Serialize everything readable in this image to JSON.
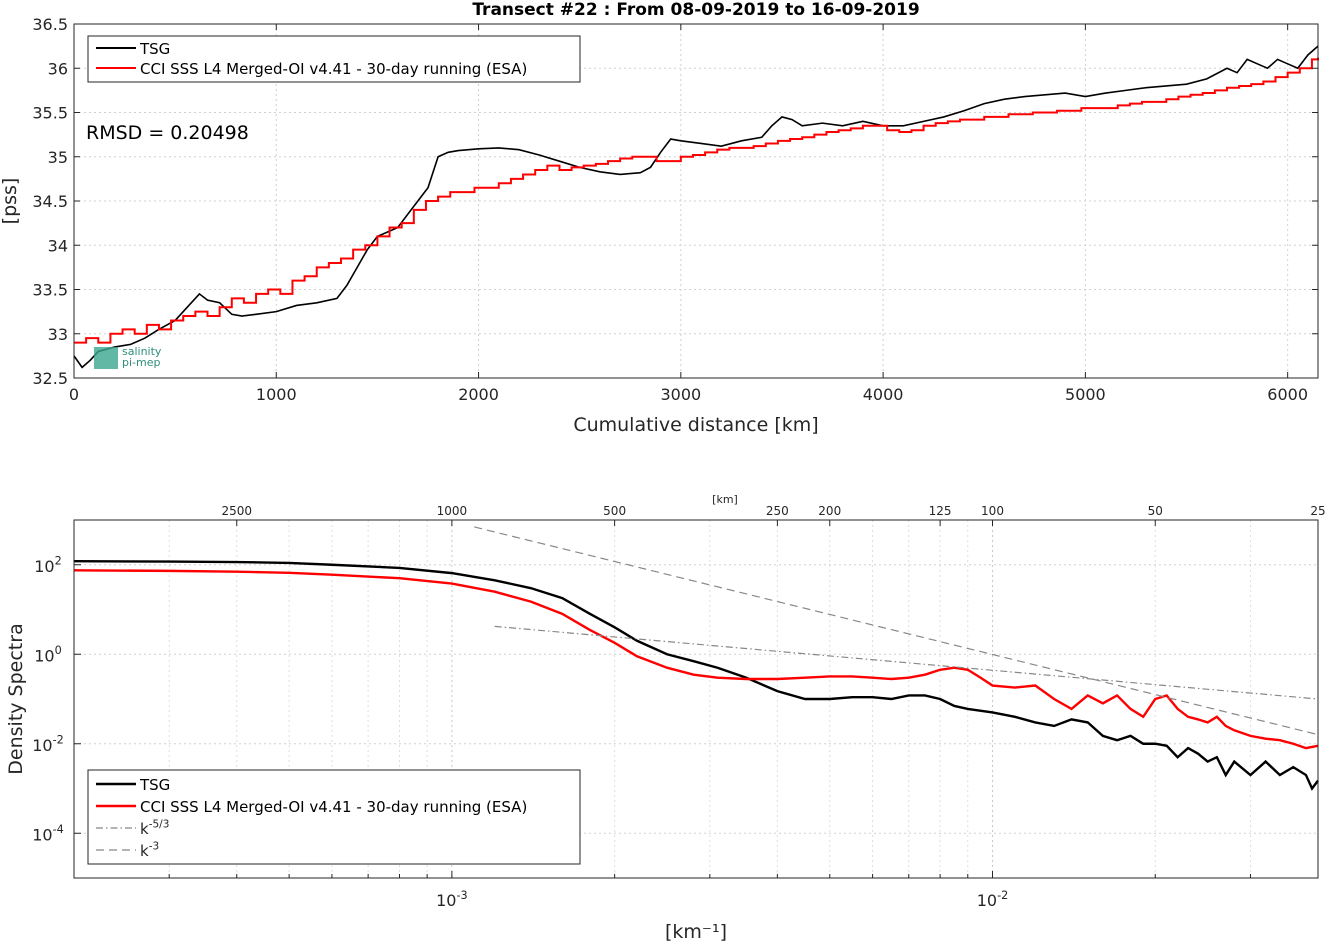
{
  "chart_data": [
    {
      "type": "line",
      "title": "Transect #22 : From 08-09-2019 to 16-09-2019",
      "xlabel": "Cumulative distance [km]",
      "ylabel": "[pss]",
      "xlim": [
        0,
        6150
      ],
      "ylim": [
        32.5,
        36.5
      ],
      "xticks": [
        0,
        1000,
        2000,
        3000,
        4000,
        5000,
        6000
      ],
      "yticks": [
        32.5,
        33,
        33.5,
        34,
        34.5,
        35,
        35.5,
        36,
        36.5
      ],
      "xtick_labels": [
        "0",
        "1000",
        "2000",
        "3000",
        "4000",
        "5000",
        "6000"
      ],
      "ytick_labels": [
        "32.5",
        "33",
        "33.5",
        "34",
        "34.5",
        "35",
        "35.5",
        "36",
        "36.5"
      ],
      "grid": true,
      "legend_position": "top-left",
      "annotation": "RMSD = 0.20498",
      "watermark_text": [
        "salinity",
        "pi-mep"
      ],
      "series": [
        {
          "name": "TSG",
          "color": "#000000",
          "x": [
            0,
            40,
            80,
            120,
            200,
            280,
            350,
            420,
            500,
            560,
            620,
            660,
            720,
            780,
            830,
            900,
            1000,
            1100,
            1200,
            1300,
            1350,
            1400,
            1450,
            1500,
            1550,
            1600,
            1650,
            1700,
            1750,
            1800,
            1850,
            1900,
            2000,
            2100,
            2200,
            2300,
            2400,
            2500,
            2600,
            2700,
            2800,
            2850,
            2900,
            2950,
            3000,
            3100,
            3200,
            3300,
            3400,
            3450,
            3500,
            3550,
            3600,
            3700,
            3800,
            3900,
            4000,
            4100,
            4200,
            4300,
            4400,
            4500,
            4600,
            4700,
            4800,
            4900,
            5000,
            5100,
            5200,
            5300,
            5400,
            5500,
            5600,
            5700,
            5750,
            5800,
            5850,
            5900,
            5950,
            6000,
            6050,
            6100,
            6150
          ],
          "y": [
            32.75,
            32.62,
            32.7,
            32.8,
            32.85,
            32.88,
            32.95,
            33.05,
            33.15,
            33.3,
            33.45,
            33.38,
            33.35,
            33.22,
            33.2,
            33.22,
            33.25,
            33.32,
            33.35,
            33.4,
            33.55,
            33.75,
            33.95,
            34.1,
            34.15,
            34.2,
            34.35,
            34.5,
            34.65,
            35.0,
            35.05,
            35.07,
            35.09,
            35.1,
            35.08,
            35.02,
            34.95,
            34.88,
            34.83,
            34.8,
            34.82,
            34.88,
            35.05,
            35.2,
            35.18,
            35.15,
            35.12,
            35.18,
            35.22,
            35.35,
            35.45,
            35.42,
            35.35,
            35.38,
            35.35,
            35.4,
            35.35,
            35.35,
            35.4,
            35.45,
            35.52,
            35.6,
            35.65,
            35.68,
            35.7,
            35.72,
            35.68,
            35.72,
            35.75,
            35.78,
            35.8,
            35.82,
            35.88,
            36.0,
            35.95,
            36.1,
            36.05,
            36.0,
            36.1,
            36.05,
            36.0,
            36.15,
            36.25
          ]
        },
        {
          "name": "CCI SSS L4 Merged-OI v4.41 - 30-day running (ESA)",
          "color": "#ff0000",
          "step": true,
          "x": [
            0,
            60,
            120,
            180,
            240,
            300,
            360,
            420,
            480,
            540,
            600,
            660,
            720,
            780,
            840,
            900,
            960,
            1020,
            1080,
            1140,
            1200,
            1260,
            1320,
            1380,
            1440,
            1500,
            1560,
            1620,
            1680,
            1740,
            1800,
            1860,
            1920,
            1980,
            2040,
            2100,
            2160,
            2220,
            2280,
            2340,
            2400,
            2460,
            2520,
            2580,
            2640,
            2700,
            2760,
            2820,
            2880,
            2940,
            3000,
            3060,
            3120,
            3180,
            3240,
            3300,
            3360,
            3420,
            3480,
            3540,
            3600,
            3660,
            3720,
            3780,
            3840,
            3900,
            3960,
            4020,
            4080,
            4140,
            4200,
            4260,
            4320,
            4380,
            4440,
            4500,
            4560,
            4620,
            4680,
            4740,
            4800,
            4860,
            4920,
            4980,
            5040,
            5100,
            5160,
            5220,
            5280,
            5340,
            5400,
            5460,
            5520,
            5580,
            5640,
            5700,
            5760,
            5820,
            5880,
            5940,
            6000,
            6060,
            6120,
            6150
          ],
          "y": [
            32.9,
            32.95,
            32.9,
            33.0,
            33.05,
            33.0,
            33.1,
            33.05,
            33.15,
            33.2,
            33.25,
            33.2,
            33.3,
            33.4,
            33.35,
            33.45,
            33.5,
            33.45,
            33.6,
            33.65,
            33.75,
            33.8,
            33.85,
            33.95,
            34.0,
            34.1,
            34.2,
            34.25,
            34.4,
            34.5,
            34.55,
            34.6,
            34.6,
            34.65,
            34.65,
            34.7,
            34.75,
            34.8,
            34.85,
            34.9,
            34.85,
            34.88,
            34.9,
            34.92,
            34.95,
            34.98,
            35.0,
            35.0,
            34.95,
            34.95,
            35.0,
            35.02,
            35.05,
            35.08,
            35.1,
            35.1,
            35.12,
            35.15,
            35.18,
            35.2,
            35.22,
            35.25,
            35.28,
            35.3,
            35.32,
            35.35,
            35.35,
            35.3,
            35.28,
            35.3,
            35.35,
            35.38,
            35.4,
            35.42,
            35.42,
            35.45,
            35.45,
            35.48,
            35.48,
            35.5,
            35.5,
            35.52,
            35.52,
            35.55,
            35.55,
            35.55,
            35.58,
            35.6,
            35.62,
            35.62,
            35.65,
            35.68,
            35.7,
            35.72,
            35.75,
            35.78,
            35.8,
            35.82,
            35.85,
            35.9,
            35.95,
            36.0,
            36.1,
            36.12
          ]
        }
      ]
    },
    {
      "type": "line",
      "title": "",
      "xlabel": "[km⁻¹]",
      "ylabel": "Density Spectra",
      "top_axis_label": "[km]",
      "top_ticks_km": [
        2500,
        1000,
        500,
        250,
        200,
        125,
        100,
        50,
        25
      ],
      "top_tick_labels": [
        "2500",
        "1000",
        "500",
        "250",
        "200",
        "125",
        "100",
        "50",
        "25"
      ],
      "xscale": "log",
      "yscale": "log",
      "xlim": [
        0.0002,
        0.04
      ],
      "ylim": [
        1e-05,
        1000
      ],
      "xticks": [
        0.001,
        0.01
      ],
      "xtick_labels": [
        "10",
        "10"
      ],
      "xtick_exponents": [
        "-3",
        "-2"
      ],
      "yticks": [
        0.0001,
        0.01,
        1,
        100
      ],
      "ytick_labels": [
        "10",
        "10",
        "10",
        "10"
      ],
      "ytick_exponents": [
        "-4",
        "-2",
        "0",
        "2"
      ],
      "grid": true,
      "legend_position": "bottom-left",
      "series": [
        {
          "name": "TSG",
          "color": "#000000",
          "style": "solid",
          "x": [
            0.0002,
            0.0003,
            0.0004,
            0.0005,
            0.0006,
            0.0008,
            0.001,
            0.0012,
            0.0014,
            0.0016,
            0.0018,
            0.002,
            0.0022,
            0.0025,
            0.0028,
            0.0031,
            0.0035,
            0.004,
            0.0045,
            0.005,
            0.0055,
            0.006,
            0.0065,
            0.007,
            0.0075,
            0.008,
            0.0085,
            0.009,
            0.01,
            0.011,
            0.012,
            0.013,
            0.014,
            0.015,
            0.016,
            0.017,
            0.018,
            0.019,
            0.02,
            0.021,
            0.022,
            0.023,
            0.024,
            0.025,
            0.026,
            0.027,
            0.028,
            0.03,
            0.032,
            0.034,
            0.036,
            0.038,
            0.039,
            0.04
          ],
          "y": [
            120,
            118,
            115,
            110,
            100,
            85,
            65,
            45,
            30,
            18,
            8,
            4,
            2,
            1.0,
            0.7,
            0.5,
            0.3,
            0.15,
            0.1,
            0.1,
            0.11,
            0.11,
            0.1,
            0.12,
            0.12,
            0.1,
            0.07,
            0.06,
            0.05,
            0.04,
            0.03,
            0.025,
            0.035,
            0.03,
            0.015,
            0.012,
            0.015,
            0.01,
            0.01,
            0.009,
            0.005,
            0.008,
            0.006,
            0.004,
            0.005,
            0.002,
            0.004,
            0.002,
            0.004,
            0.002,
            0.003,
            0.002,
            0.001,
            0.0015
          ]
        },
        {
          "name": "CCI SSS L4 Merged-OI v4.41 - 30-day running (ESA)",
          "color": "#ff0000",
          "style": "solid",
          "x": [
            0.0002,
            0.0003,
            0.0004,
            0.0005,
            0.0006,
            0.0008,
            0.001,
            0.0012,
            0.0014,
            0.0016,
            0.0018,
            0.002,
            0.0022,
            0.0025,
            0.0028,
            0.0031,
            0.0035,
            0.004,
            0.0045,
            0.005,
            0.0055,
            0.006,
            0.0065,
            0.007,
            0.0075,
            0.008,
            0.0085,
            0.009,
            0.0095,
            0.01,
            0.011,
            0.012,
            0.013,
            0.014,
            0.015,
            0.016,
            0.017,
            0.018,
            0.019,
            0.02,
            0.021,
            0.022,
            0.023,
            0.024,
            0.025,
            0.026,
            0.027,
            0.028,
            0.03,
            0.032,
            0.034,
            0.036,
            0.038,
            0.04
          ],
          "y": [
            75,
            73,
            70,
            66,
            60,
            50,
            38,
            25,
            15,
            8,
            3.5,
            1.8,
            0.9,
            0.5,
            0.35,
            0.3,
            0.28,
            0.28,
            0.3,
            0.32,
            0.32,
            0.3,
            0.28,
            0.3,
            0.35,
            0.45,
            0.5,
            0.45,
            0.3,
            0.2,
            0.18,
            0.2,
            0.1,
            0.06,
            0.12,
            0.08,
            0.12,
            0.06,
            0.04,
            0.1,
            0.12,
            0.06,
            0.04,
            0.035,
            0.03,
            0.04,
            0.025,
            0.02,
            0.015,
            0.013,
            0.012,
            0.01,
            0.008,
            0.009
          ]
        },
        {
          "name": "k⁻⁵ᐟ³",
          "label_base": "k",
          "label_exp": "-5/3",
          "color": "#888888",
          "style": "dashdot",
          "x": [
            0.0012,
            0.04
          ],
          "y": [
            4.2,
            0.1
          ]
        },
        {
          "name": "k⁻³",
          "label_base": "k",
          "label_exp": "-3",
          "color": "#888888",
          "style": "dashed",
          "x": [
            0.0011,
            0.04
          ],
          "y": [
            700,
            0.016
          ]
        }
      ]
    }
  ]
}
